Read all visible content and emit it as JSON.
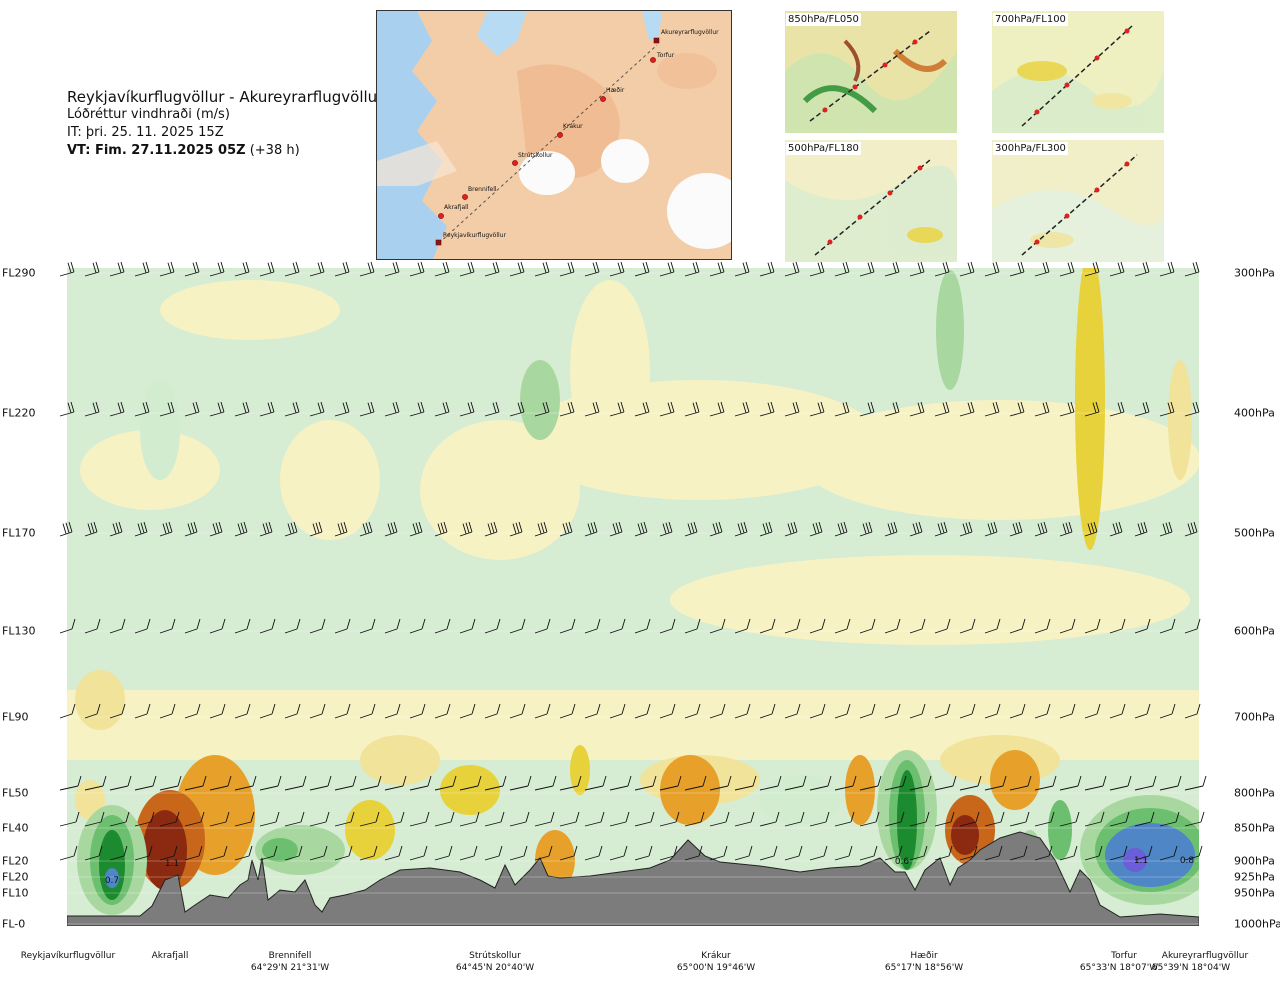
{
  "title": {
    "route": "Reykjavíkurflugvöllur - Akureyrarflugvöllur",
    "variable": "Lóðréttur vindhraði (m/s)",
    "it": "IT: þri. 25. 11. 2025 15Z",
    "vt_bold": "VT: Fim. 27.11.2025 05Z",
    "vt_rest": "(+38 h)"
  },
  "map": {
    "points": [
      {
        "name": "Akureyrarflugvöllur"
      },
      {
        "name": "Torfur"
      },
      {
        "name": "Hæðir"
      },
      {
        "name": "Krákur"
      },
      {
        "name": "Strútskollur"
      },
      {
        "name": "Brennifell"
      },
      {
        "name": "Akrafjall"
      },
      {
        "name": "Reykjavíkurflugvöllur"
      }
    ]
  },
  "insets": [
    {
      "label": "850hPa/FL050"
    },
    {
      "label": "700hPa/FL100"
    },
    {
      "label": "500hPa/FL180"
    },
    {
      "label": "300hPa/FL300"
    }
  ],
  "chart_data": {
    "type": "heatmap",
    "title": "Lóðréttur vindhraði (m/s)",
    "left_axis_labels": [
      "FL290",
      "FL220",
      "FL170",
      "FL130",
      "FL90",
      "FL50",
      "FL40",
      "FL20",
      "FL20",
      "FL10",
      "FL-0"
    ],
    "right_axis_labels": [
      "300hPa",
      "400hPa",
      "500hPa",
      "600hPa",
      "700hPa",
      "800hPa",
      "850hPa",
      "900hPa",
      "925hPa",
      "950hPa",
      "1000hPa"
    ],
    "pressure_levels_hpa": [
      300,
      400,
      500,
      600,
      700,
      800,
      850,
      900,
      925,
      950,
      1000
    ],
    "x_locations": [
      {
        "name": "Reykjavíkurflugvöllur",
        "coord": ""
      },
      {
        "name": "Akrafjall",
        "coord": ""
      },
      {
        "name": "Brennifell",
        "coord": "64°29'N 21°31'W"
      },
      {
        "name": "Strútskollur",
        "coord": "64°45'N 20°40'W"
      },
      {
        "name": "Krákur",
        "coord": "65°00'N 19°46'W"
      },
      {
        "name": "Hæðir",
        "coord": "65°17'N 18°56'W"
      },
      {
        "name": "Torfur",
        "coord": "65°33'N 18°07'W"
      },
      {
        "name": "Akureyrarflugvöllur",
        "coord": "65°39'N 18°04'W"
      }
    ],
    "annotations": [
      "0.7",
      "1.1",
      "0.6",
      "1.1",
      "0.8"
    ],
    "colors": {
      "down_strong": "#6a5fd8",
      "down_mod": "#4f86c6",
      "neg_2": "#1c8a2e",
      "neg_1": "#6cbf6e",
      "neg_05": "#a8d8a0",
      "neg_02": "#d2ecd0",
      "near_zero": "#eef6e8",
      "pos_02": "#f7f2c4",
      "pos_05": "#f1e39a",
      "pos_1": "#e8d23b",
      "pos_2": "#e7a12b",
      "pos_3": "#c8661a",
      "pos_4": "#8b2a10",
      "terrain": "#7c7c7c"
    }
  }
}
